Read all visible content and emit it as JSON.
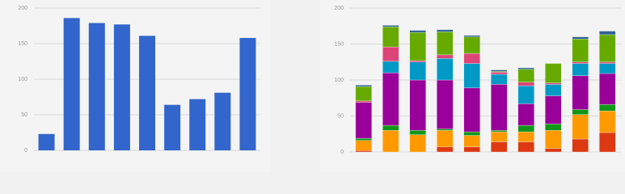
{
  "chart_data": [
    {
      "type": "bar",
      "color": "#3366cc",
      "categories": [
        null,
        null,
        null,
        null,
        null,
        null,
        null,
        null,
        null
      ],
      "values": [
        23,
        186,
        179,
        177,
        161,
        64,
        72,
        81,
        158
      ],
      "ylim": [
        0,
        200
      ],
      "yticks": [
        0,
        50,
        100,
        150,
        200
      ],
      "grid": true
    },
    {
      "type": "stacked_bar",
      "categories": [
        null,
        null,
        null,
        null,
        null,
        null,
        null,
        null,
        null,
        null
      ],
      "series": [
        {
          "name": null,
          "color": "#dc3912",
          "values": [
            2,
            0,
            0,
            7,
            7,
            14,
            14,
            5,
            18,
            27
          ]
        },
        {
          "name": null,
          "color": "#ff9900",
          "values": [
            14,
            30,
            24,
            23,
            16,
            14,
            14,
            25,
            34,
            30
          ]
        },
        {
          "name": null,
          "color": "#109618",
          "values": [
            3,
            7,
            6,
            2,
            5,
            2,
            9,
            9,
            7,
            9
          ]
        },
        {
          "name": null,
          "color": "#990099",
          "values": [
            50,
            73,
            70,
            68,
            61,
            64,
            30,
            39,
            47,
            43
          ]
        },
        {
          "name": null,
          "color": "#0099c6",
          "values": [
            0,
            16,
            25,
            30,
            34,
            14,
            25,
            16,
            17,
            14
          ]
        },
        {
          "name": null,
          "color": "#dd4477",
          "values": [
            2,
            20,
            2,
            5,
            14,
            3,
            5,
            2,
            2,
            2
          ]
        },
        {
          "name": null,
          "color": "#66aa00",
          "values": [
            20,
            28,
            39,
            32,
            23,
            1,
            18,
            27,
            32,
            38
          ]
        },
        {
          "name": null,
          "color": "#316395",
          "values": [
            2,
            2,
            3,
            3,
            2,
            2,
            2,
            0,
            3,
            5
          ]
        }
      ],
      "ylim": [
        0,
        200
      ],
      "yticks": [
        0,
        50,
        100,
        150,
        200
      ],
      "grid": true
    }
  ]
}
